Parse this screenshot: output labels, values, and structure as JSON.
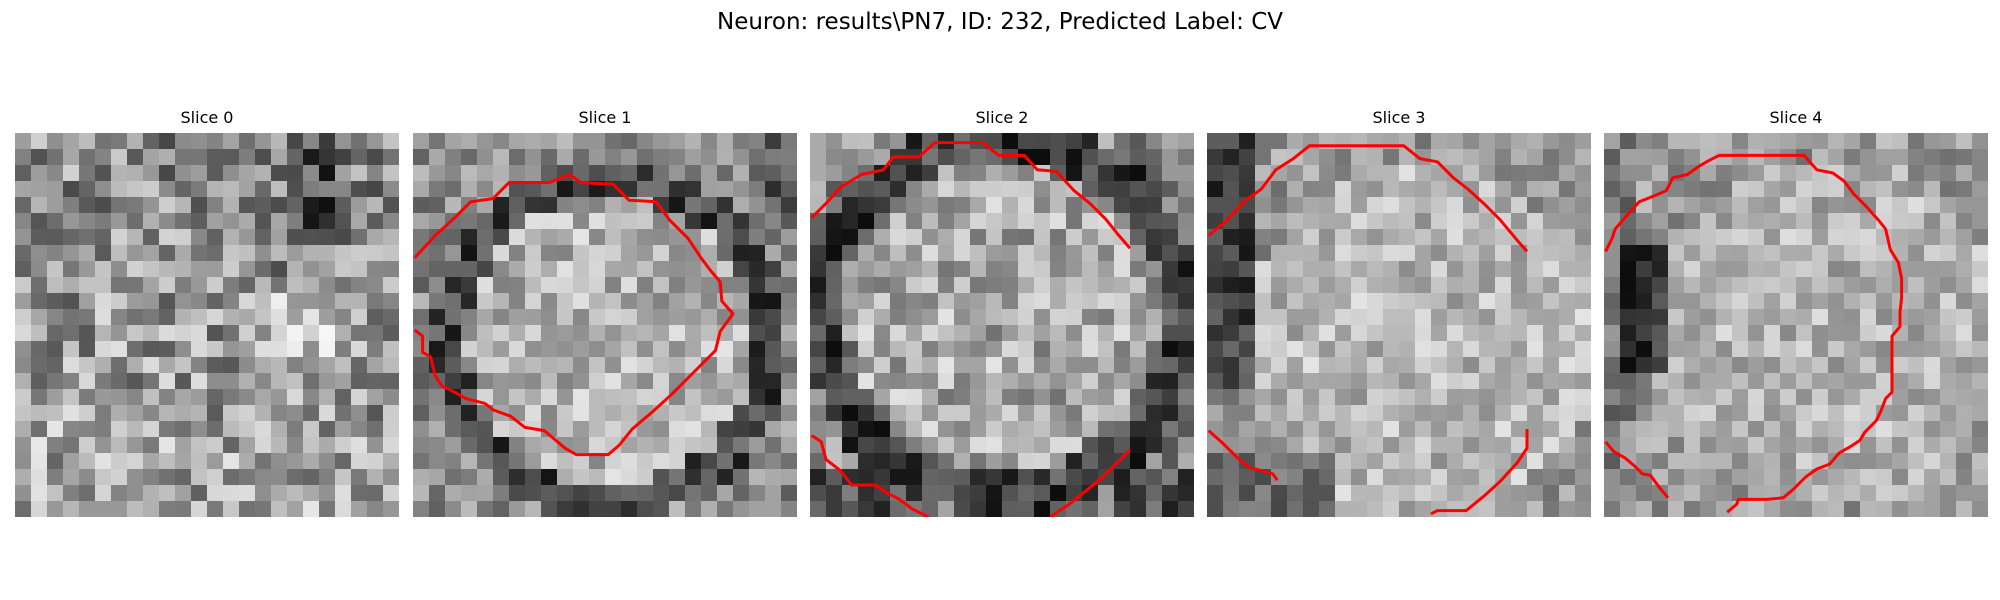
{
  "figure": {
    "title": "Neuron: results\\PN7, ID: 232, Predicted Label: CV"
  },
  "panels": [
    {
      "title": "Slice 0"
    },
    {
      "title": "Slice 1"
    },
    {
      "title": "Slice 2"
    },
    {
      "title": "Slice 3"
    },
    {
      "title": "Slice 4"
    }
  ],
  "colors": {
    "contour": "#ff0000",
    "background": "#ffffff"
  },
  "image": {
    "description_kind": "grayscale microscopy slices with red segmentation contour",
    "grid_cells": 24
  }
}
